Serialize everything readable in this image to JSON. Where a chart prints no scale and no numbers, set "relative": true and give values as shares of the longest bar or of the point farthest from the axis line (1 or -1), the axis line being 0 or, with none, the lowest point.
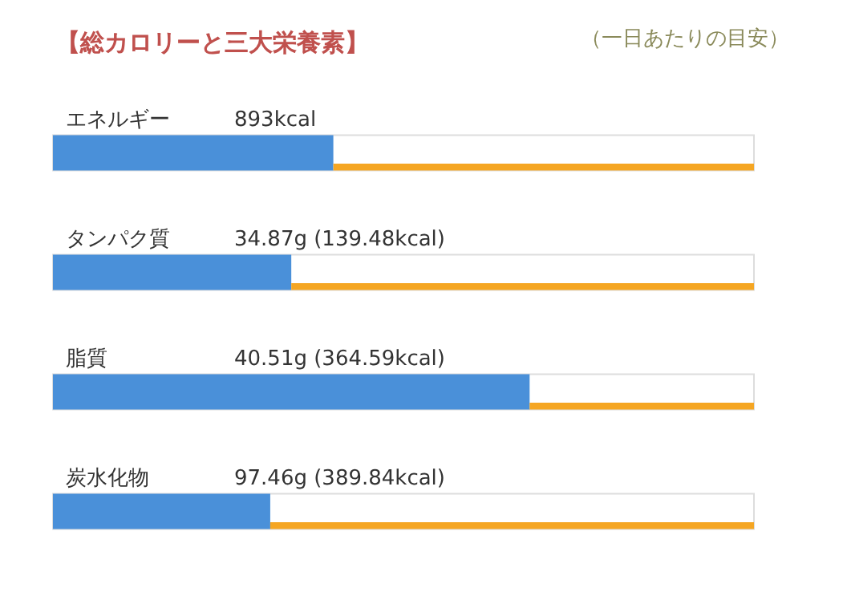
{
  "chart_data": {
    "type": "bar",
    "orientation": "horizontal",
    "stacked": true,
    "relative": true,
    "title": "【総カロリーと三大栄養素】",
    "categories": [
      "エネルギー",
      "タンパク質",
      "脂質",
      "炭水化物"
    ],
    "annotations": [
      "（一日あたりの目安）",
      {
        "text": "893kcal",
        "y": "エネルギー"
      },
      {
        "text": "34.87g (139.48kcal)",
        "y": "タンパク質"
      },
      {
        "text": "40.51g (364.59kcal)",
        "y": "脂質"
      },
      {
        "text": "97.46g (389.84kcal)",
        "y": "炭水化物"
      }
    ],
    "series": [
      {
        "color": "#4a90d9",
        "values": [
          0.4,
          0.34,
          0.68,
          0.31
        ]
      },
      {
        "color": "#f5a623",
        "values": [
          0.6,
          0.66,
          0.32,
          0.69
        ]
      }
    ]
  }
}
